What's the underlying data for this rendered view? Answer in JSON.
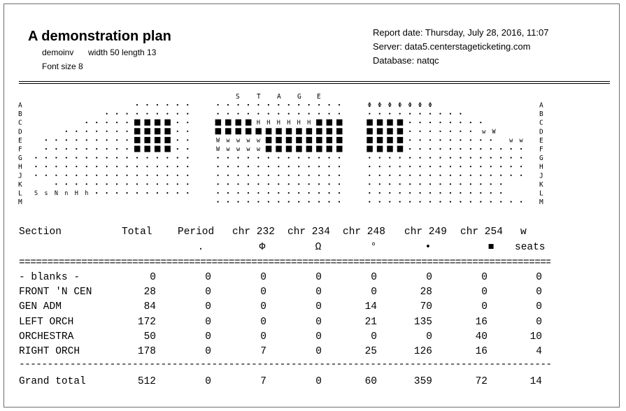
{
  "report": {
    "title": "A demonstration plan",
    "inventory": "demoinv",
    "dimensions": "width 50 length 13",
    "font_size": "Font size 8",
    "report_date": "Report date: Thursday, July 28, 2016, 11:07",
    "server": "Server: data5.centerstageticketing.com",
    "database": "Database: natqc"
  },
  "plan": {
    "stage_letters": [
      "S",
      "T",
      "A",
      "G",
      "E"
    ],
    "row_letters": [
      "A",
      "B",
      "C",
      "D",
      "E",
      "F",
      "G",
      "H",
      "J",
      "K",
      "L",
      "M"
    ],
    "colors": {
      "ink": "#000000",
      "frame": "#6e6e6e"
    }
  },
  "table": {
    "headers": {
      "line1": [
        "Section",
        "Total",
        "Period",
        "chr 232",
        "chr 234",
        "chr 248",
        "chr 249",
        "chr 254",
        "w"
      ],
      "line2": [
        "",
        "",
        ".",
        "Φ",
        "Ω",
        "°",
        "•",
        "■",
        "seats"
      ]
    },
    "rows": [
      {
        "section": "- blanks -",
        "values": [
          "0",
          "0",
          "0",
          "0",
          "0",
          "0",
          "0",
          "0"
        ]
      },
      {
        "section": "FRONT 'N CEN",
        "values": [
          "28",
          "0",
          "0",
          "0",
          "0",
          "28",
          "0",
          "0"
        ]
      },
      {
        "section": "GEN ADM",
        "values": [
          "84",
          "0",
          "0",
          "0",
          "14",
          "70",
          "0",
          "0"
        ]
      },
      {
        "section": "LEFT ORCH",
        "values": [
          "172",
          "0",
          "0",
          "0",
          "21",
          "135",
          "16",
          "0"
        ]
      },
      {
        "section": "ORCHESTRA",
        "values": [
          "50",
          "0",
          "0",
          "0",
          "0",
          "0",
          "40",
          "10"
        ]
      },
      {
        "section": "RIGHT ORCH",
        "values": [
          "178",
          "0",
          "7",
          "0",
          "25",
          "126",
          "16",
          "4"
        ]
      }
    ],
    "total": {
      "section": "Grand total",
      "values": [
        "512",
        "0",
        "7",
        "0",
        "60",
        "359",
        "72",
        "14"
      ]
    }
  }
}
